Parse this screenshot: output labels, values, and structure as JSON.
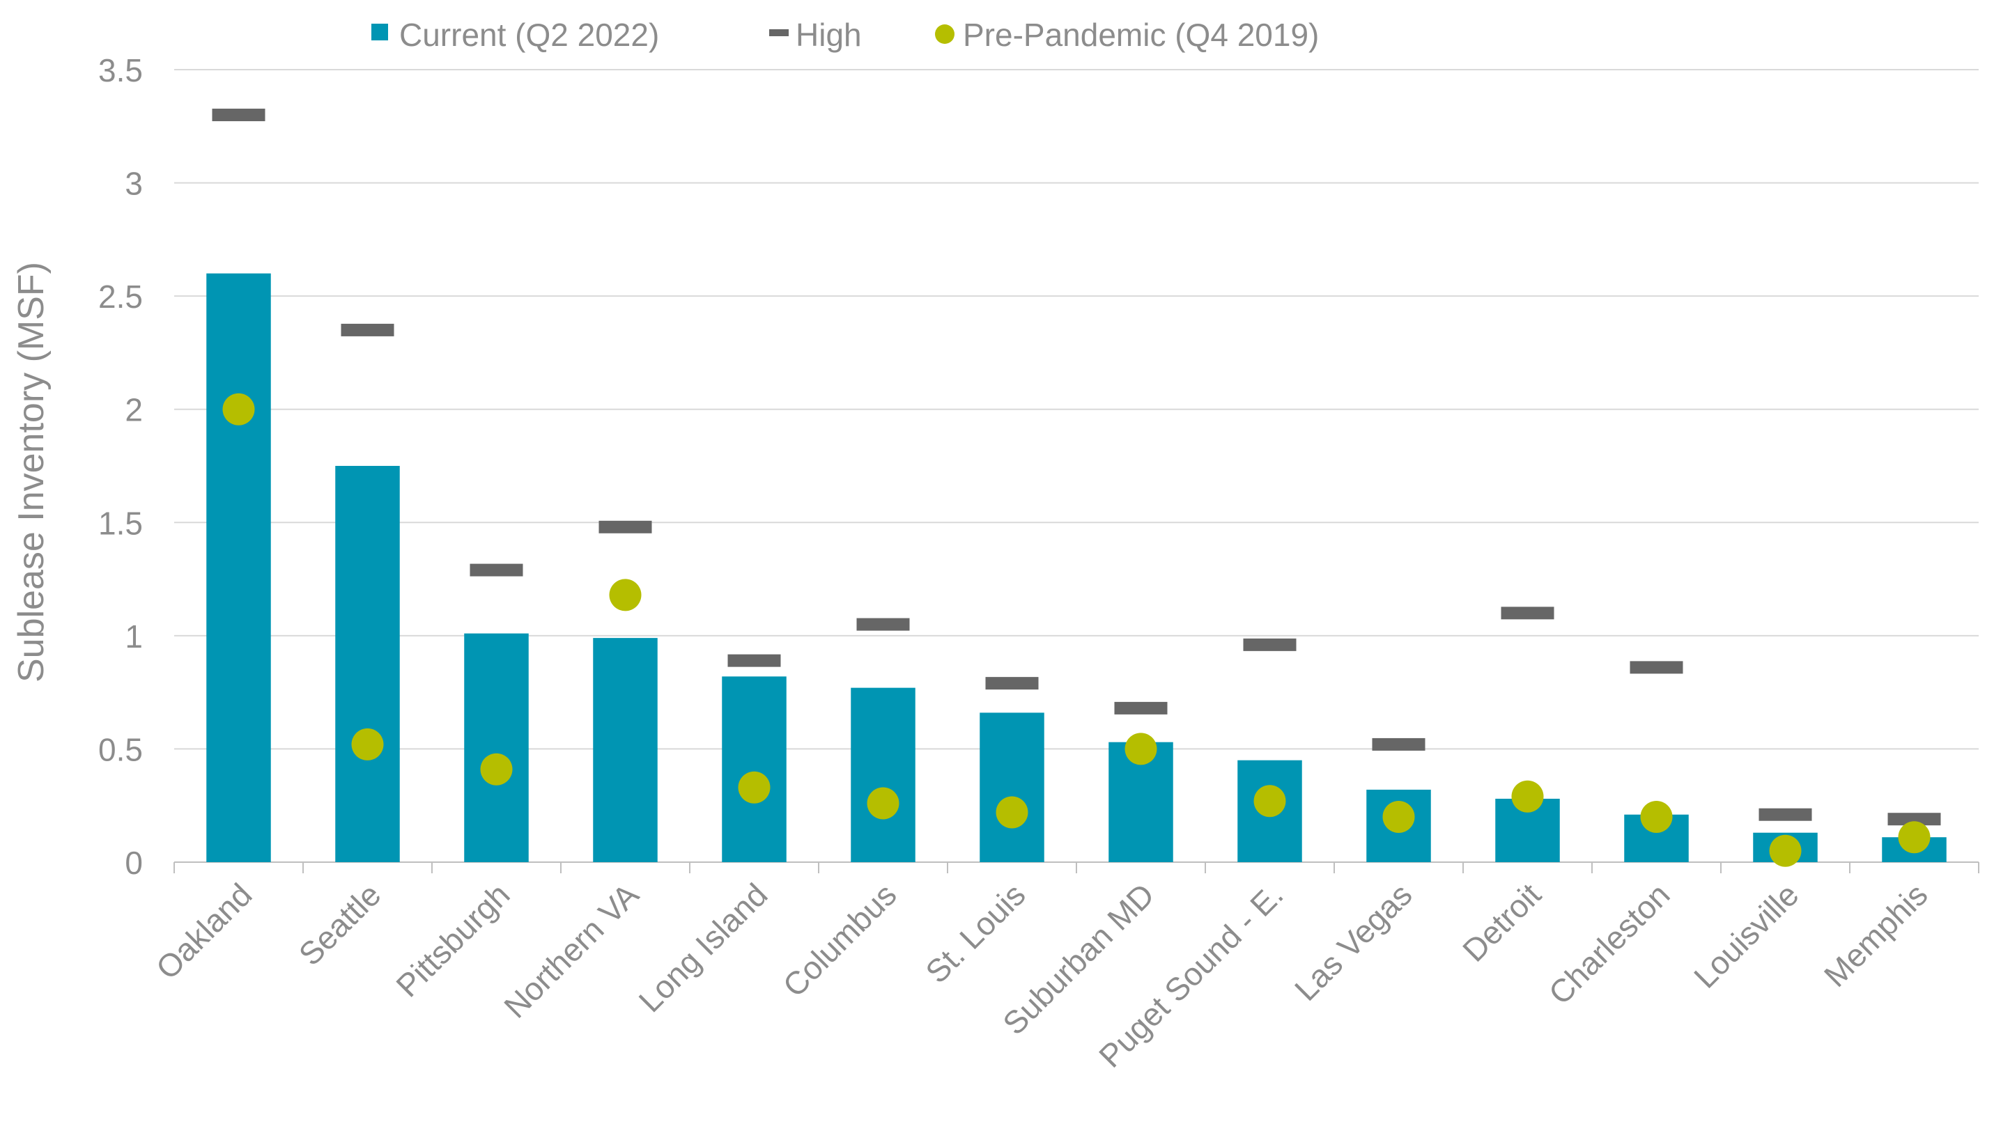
{
  "chart_data": {
    "type": "bar",
    "title": "",
    "xlabel": "",
    "ylabel": "Sublease Inventory (MSF)",
    "ylim": [
      0,
      3.5
    ],
    "yticks": [
      "0",
      "0.5",
      "1",
      "1.5",
      "2",
      "2.5",
      "3",
      "3.5"
    ],
    "grid": true,
    "legend_position": "top",
    "categories": [
      "Oakland",
      "Seattle",
      "Pittsburgh",
      "Northern VA",
      "Long Island",
      "Columbus",
      "St. Louis",
      "Suburban MD",
      "Puget Sound - E.",
      "Las Vegas",
      "Detroit",
      "Charleston",
      "Louisville",
      "Memphis"
    ],
    "series": [
      {
        "name": "Current (Q2 2022)",
        "type": "bar",
        "color": "#0095b3",
        "values": [
          2.6,
          1.75,
          1.01,
          0.99,
          0.82,
          0.77,
          0.66,
          0.53,
          0.45,
          0.32,
          0.28,
          0.21,
          0.13,
          0.11
        ]
      },
      {
        "name": "High",
        "type": "dash",
        "color": "#666666",
        "values": [
          3.3,
          2.35,
          1.29,
          1.48,
          0.89,
          1.05,
          0.79,
          0.68,
          0.96,
          0.52,
          1.1,
          0.86,
          0.21,
          0.19
        ]
      },
      {
        "name": "Pre-Pandemic (Q4 2019)",
        "type": "dot",
        "color": "#b5be00",
        "values": [
          2.0,
          0.52,
          0.41,
          1.18,
          0.33,
          0.26,
          0.22,
          0.5,
          0.27,
          0.2,
          0.29,
          0.2,
          0.05,
          0.11
        ]
      }
    ]
  }
}
